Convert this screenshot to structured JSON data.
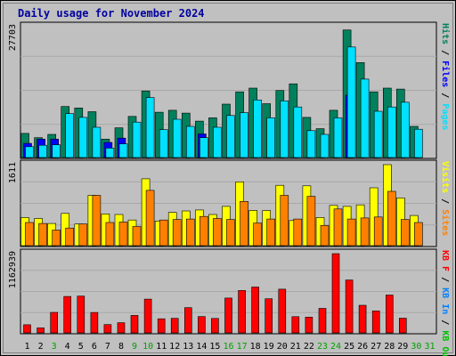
{
  "chart_data": {
    "type": "bar",
    "title": "Daily usage for November 2024",
    "categories": [
      "1",
      "2",
      "3",
      "4",
      "5",
      "6",
      "7",
      "8",
      "9",
      "10",
      "11",
      "12",
      "13",
      "14",
      "15",
      "16",
      "17",
      "18",
      "19",
      "20",
      "21",
      "22",
      "23",
      "24",
      "25",
      "26",
      "27",
      "28",
      "29",
      "30",
      "31"
    ],
    "weekend_days": [
      "3",
      "9",
      "10",
      "16",
      "17",
      "23",
      "24",
      "30",
      "31"
    ],
    "panels": [
      {
        "id": "hits-files-pages",
        "ymax_label": "27703",
        "ymax": 27703,
        "side_labels": [
          {
            "text": "Hits",
            "color": "#00805c"
          },
          {
            "text": "Files",
            "color": "#0000ff"
          },
          {
            "text": "Pages",
            "color": "#00e0ff"
          }
        ],
        "series": [
          {
            "name": "Hits",
            "color": "#00805c",
            "values": [
              5100,
              4200,
              4900,
              10800,
              10500,
              9700,
              3900,
              6300,
              8700,
              14100,
              9600,
              10000,
              9400,
              7700,
              8400,
              11300,
              13900,
              14700,
              11400,
              14200,
              15600,
              8500,
              6100,
              10000,
              27000,
              20100,
              13900,
              14700,
              14500,
              6600,
              0
            ]
          },
          {
            "name": "Files",
            "color": "#0000ff",
            "values": [
              3000,
              3900,
              3900,
              0,
              0,
              0,
              3200,
              4100,
              0,
              0,
              0,
              0,
              0,
              5000,
              0,
              0,
              0,
              0,
              0,
              0,
              0,
              0,
              0,
              0,
              13200,
              0,
              0,
              0,
              0,
              0,
              0
            ]
          },
          {
            "name": "Pages",
            "color": "#00e0ff",
            "values": [
              2300,
              2600,
              2700,
              9300,
              8500,
              6400,
              2000,
              2900,
              7500,
              12700,
              5900,
              8100,
              6600,
              4200,
              6400,
              8900,
              9500,
              12200,
              8400,
              12000,
              10700,
              5700,
              4900,
              8400,
              23400,
              16600,
              9800,
              10700,
              11700,
              6000,
              0
            ]
          }
        ]
      },
      {
        "id": "visits-sites",
        "ymax_label": "1611",
        "ymax": 1611,
        "side_labels": [
          {
            "text": "Visits",
            "color": "#ffff00"
          },
          {
            "text": "Sites",
            "color": "#ff8000"
          }
        ],
        "series": [
          {
            "name": "Visits",
            "color": "#ffff00",
            "values": [
              560,
              540,
              440,
              640,
              430,
              1000,
              630,
              620,
              510,
              1330,
              490,
              660,
              690,
              710,
              620,
              780,
              1270,
              700,
              700,
              1200,
              500,
              1190,
              560,
              800,
              780,
              810,
              1150,
              1611,
              950,
              600,
              0
            ]
          },
          {
            "name": "Sites",
            "color": "#ff8000",
            "values": [
              460,
              440,
              310,
              350,
              430,
              1000,
              460,
              470,
              380,
              1100,
              510,
              520,
              530,
              580,
              540,
              520,
              880,
              450,
              530,
              1000,
              530,
              980,
              400,
              730,
              530,
              550,
              570,
              1080,
              520,
              460,
              0
            ]
          }
        ]
      },
      {
        "id": "kb",
        "ymax_label": "1162939",
        "ymax": 1162939,
        "side_labels": [
          {
            "text": "KB F",
            "color": "#ff0000"
          },
          {
            "text": "KB In",
            "color": "#0080ff"
          },
          {
            "text": "KB Out",
            "color": "#00c000"
          }
        ],
        "series": [
          {
            "name": "KB F",
            "color": "#ff0000",
            "values": [
              119000,
              73000,
              300000,
              535000,
              540000,
              299000,
              122000,
              149000,
              256000,
              495000,
              207000,
              213000,
              370000,
              239000,
              212000,
              511000,
              622000,
              673000,
              501000,
              642000,
              238000,
              231000,
              359000,
              1162939,
              776000,
              405000,
              323000,
              555000,
              216000,
              0,
              0
            ]
          }
        ]
      }
    ]
  }
}
